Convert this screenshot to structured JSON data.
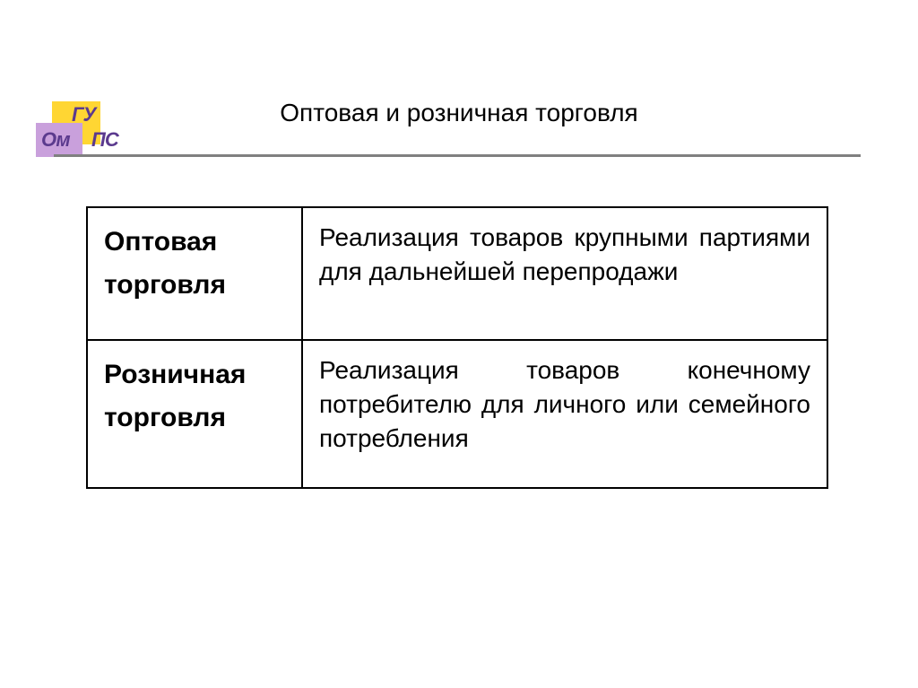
{
  "logo": {
    "text_gy": "ГУ",
    "text_om": "Ом",
    "text_ps": "ПС",
    "yellow": "#ffd633",
    "purple": "#c9a0dc",
    "text_color": "#5b3a8e"
  },
  "title": "Оптовая и розничная торговля",
  "table": {
    "columns_width": [
      240,
      588
    ],
    "rows": [
      {
        "label": "Оптовая торговля",
        "desc": "Реализация товаров крупными партиями для дальнейшей перепродажи"
      },
      {
        "label": "Розничная торговля",
        "desc": "Реализация товаров конечному потребителю для личного или семейного потребления"
      }
    ],
    "border_color": "#000000",
    "label_fontsize": 30,
    "label_fontweight": "bold",
    "desc_fontsize": 28,
    "text_color": "#000000"
  },
  "hr_color": "#808080",
  "background_color": "#ffffff",
  "title_fontsize": 28
}
